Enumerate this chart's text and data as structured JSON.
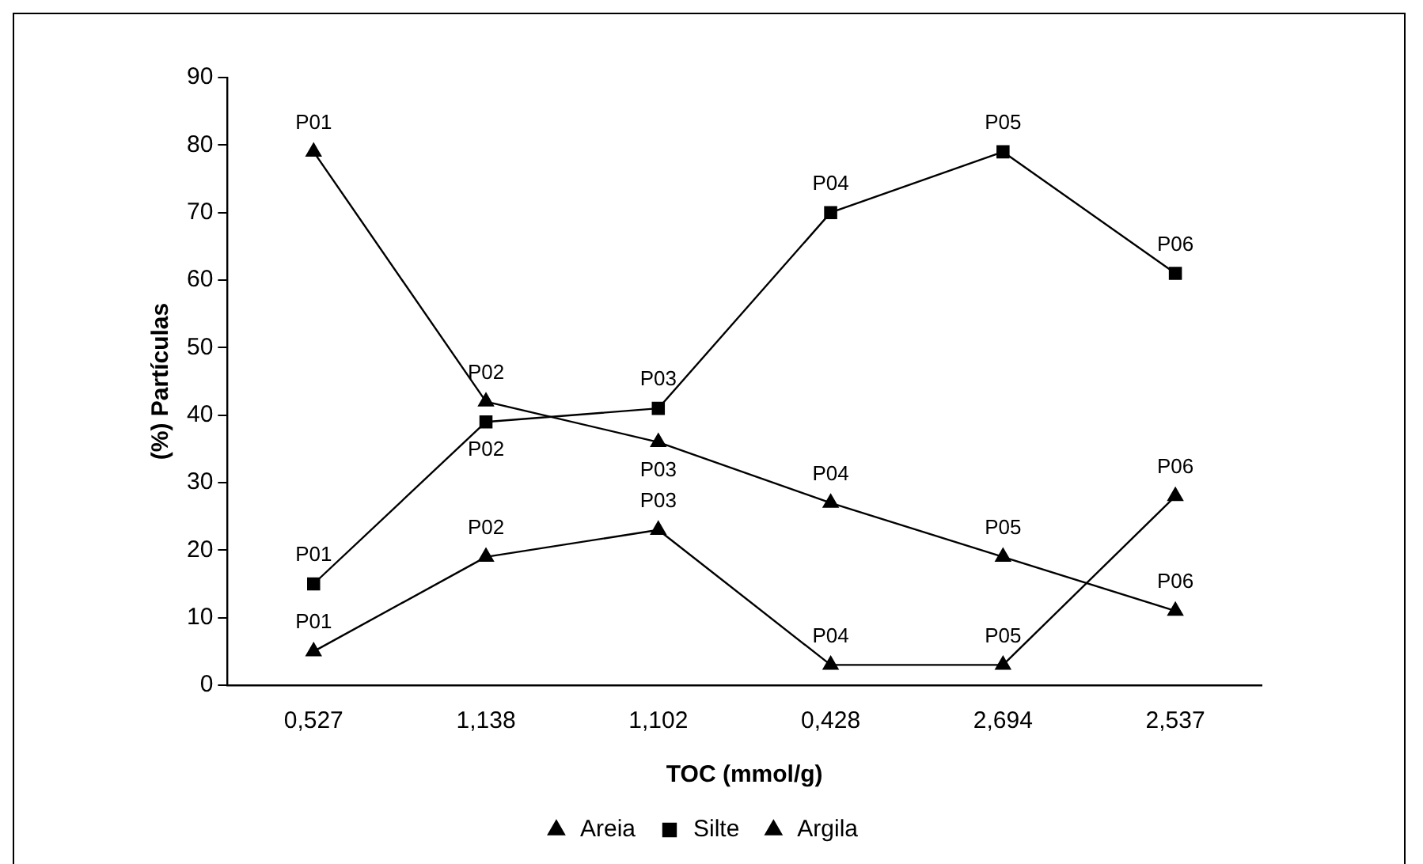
{
  "chart_data": {
    "type": "line",
    "xlabel": "TOC (mmol/g)",
    "ylabel": "(%) Partículas",
    "categories": [
      "0,527",
      "1,138",
      "1,102",
      "0,428",
      "2,694",
      "2,537"
    ],
    "series": [
      {
        "name": "Areia",
        "color": "#000000",
        "marker": "triangle",
        "values": [
          79,
          42,
          36,
          27,
          19,
          11
        ],
        "value_labels": [
          "P01",
          "P02",
          "P03",
          "P04",
          "P05",
          "P06"
        ]
      },
      {
        "name": "Silte",
        "color": "#000000",
        "marker": "square",
        "values": [
          15,
          39,
          41,
          70,
          79,
          61
        ],
        "value_labels": [
          "P01",
          "P02",
          "P03",
          "P04",
          "P05",
          "P06"
        ]
      },
      {
        "name": "Argila",
        "color": "#000000",
        "marker": "triangle",
        "values": [
          5,
          19,
          23,
          3,
          3,
          28
        ],
        "value_labels": [
          "P01",
          "P02",
          "P03",
          "P04",
          "P05",
          "P06"
        ]
      }
    ],
    "ylim": [
      0,
      90
    ],
    "yticks": [
      0,
      10,
      20,
      30,
      40,
      50,
      60,
      70,
      80,
      90
    ],
    "grid": false,
    "legend": "bottom",
    "line_style": "solid"
  }
}
